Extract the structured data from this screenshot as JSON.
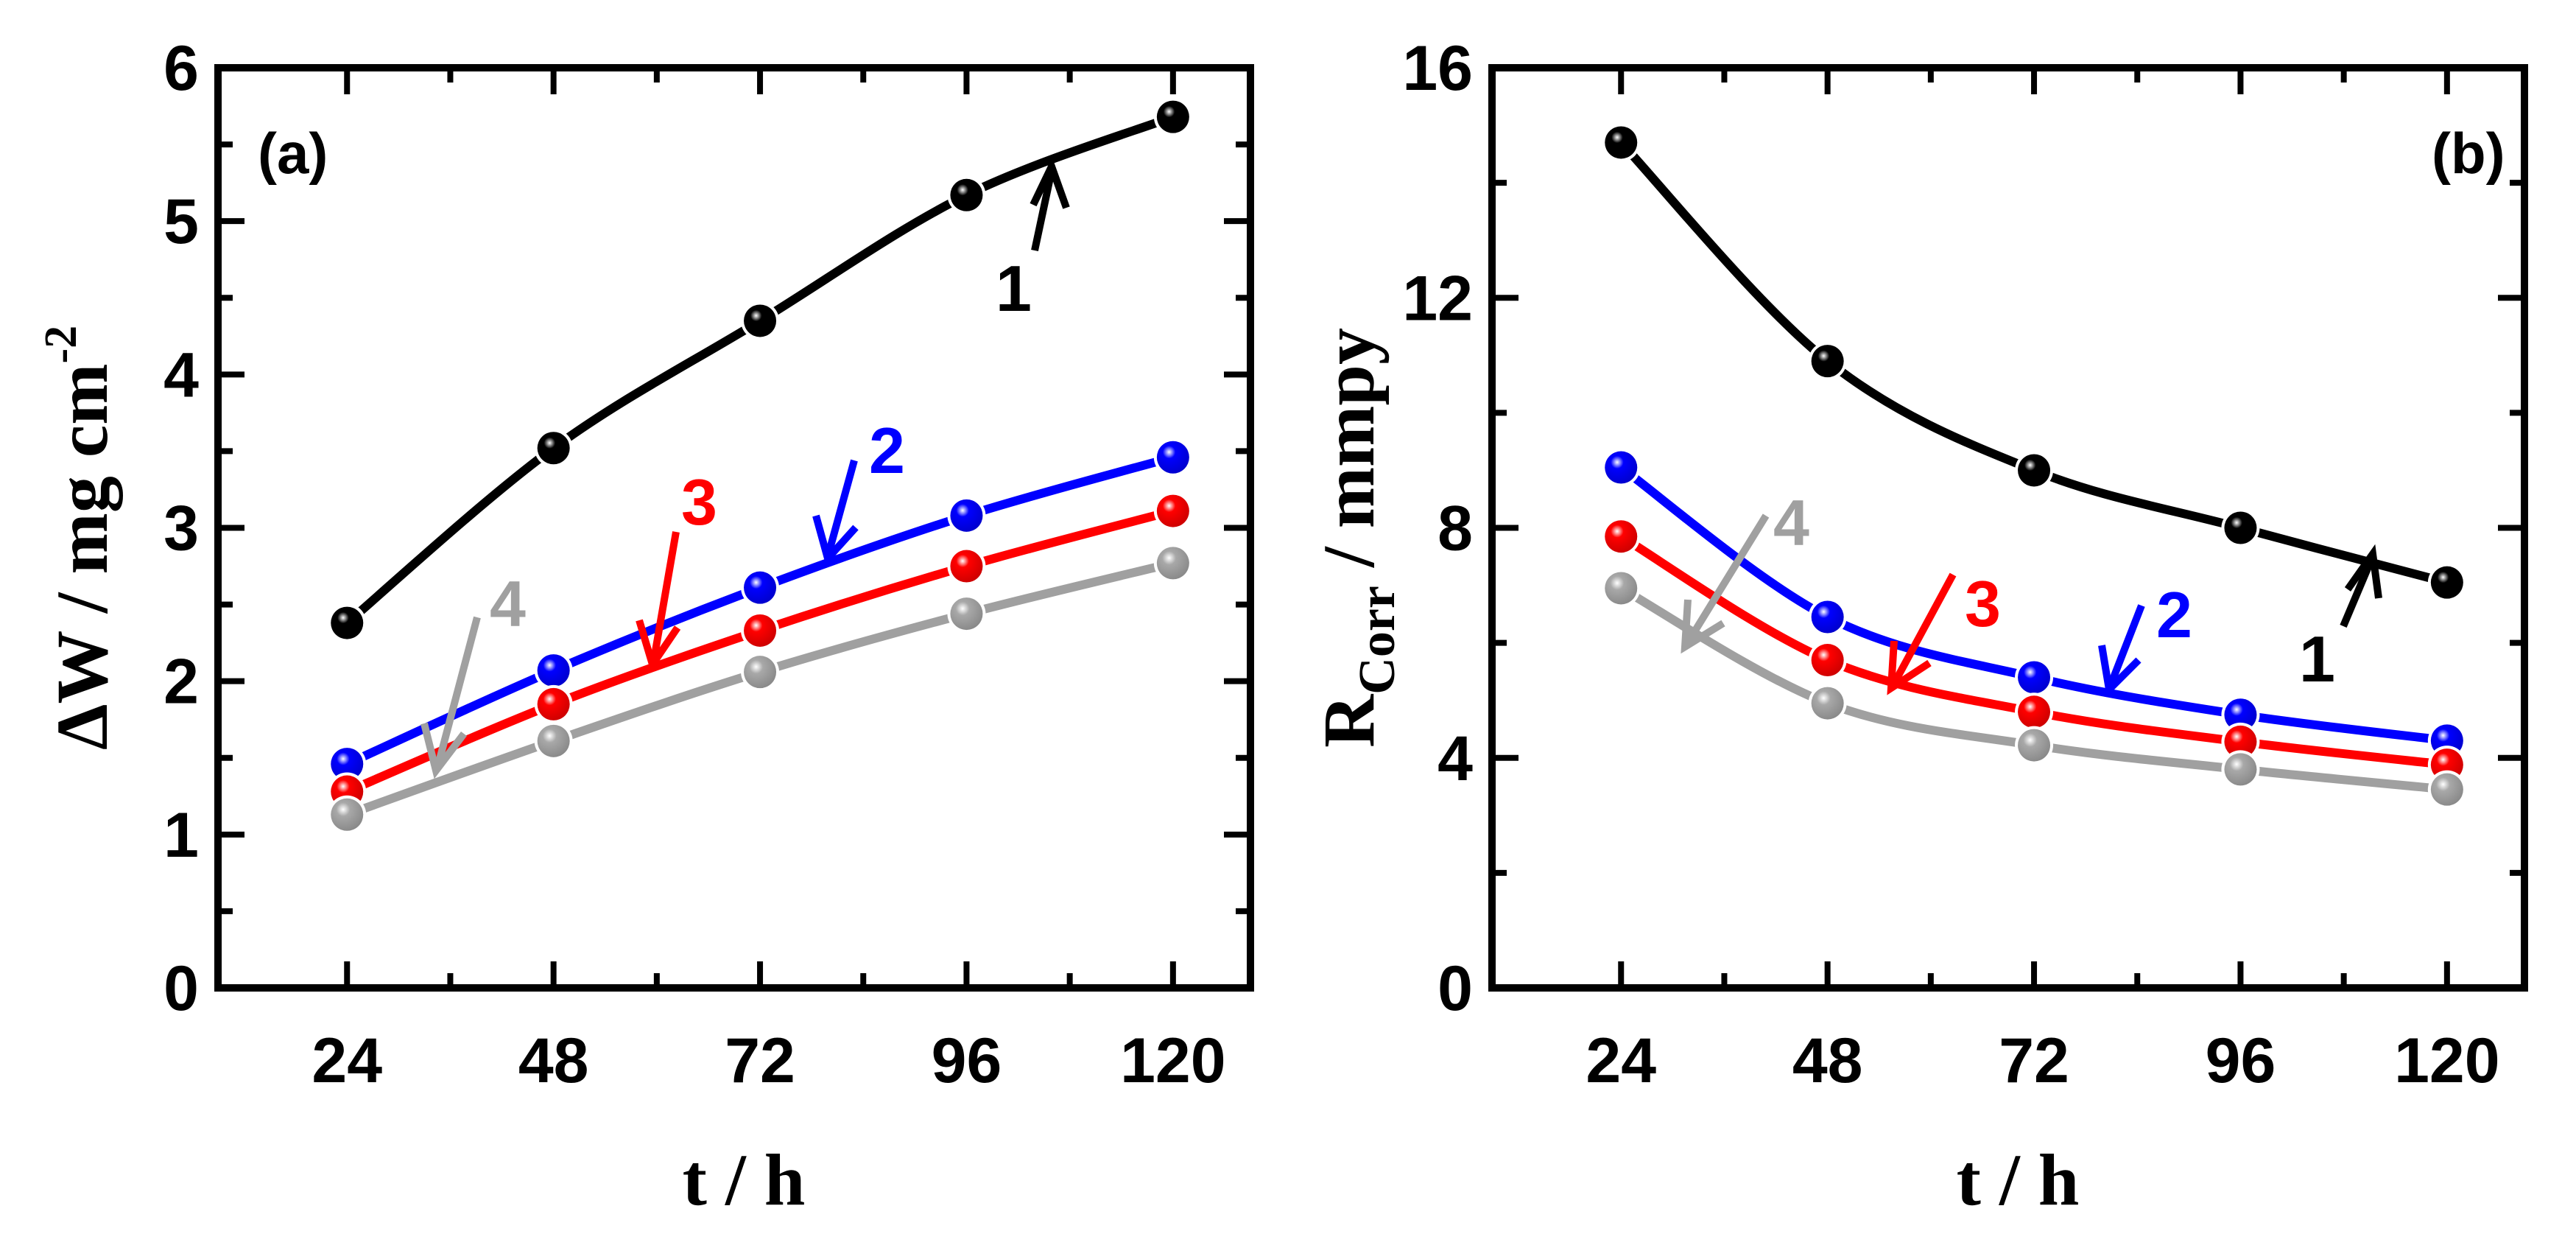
{
  "chart_data": [
    {
      "panel": "(a)",
      "type": "line",
      "xlabel": "t / h",
      "ylabel": "ΔW / mg cm-2",
      "ylabel_main": "ΔW / mg cm",
      "ylabel_sup": "-2",
      "x": [
        24,
        48,
        72,
        96,
        120
      ],
      "xlim": [
        9,
        129
      ],
      "ylim": [
        0,
        6
      ],
      "xticks": [
        24,
        48,
        72,
        96,
        120
      ],
      "yticks": [
        0,
        1,
        2,
        3,
        4,
        5,
        6
      ],
      "series": [
        {
          "name": "1",
          "color": "#000000",
          "values": [
            2.38,
            3.52,
            4.35,
            5.17,
            5.68
          ]
        },
        {
          "name": "2",
          "color": "#0000ff",
          "values": [
            1.46,
            2.07,
            2.61,
            3.08,
            3.46
          ]
        },
        {
          "name": "3",
          "color": "#ff0000",
          "values": [
            1.28,
            1.85,
            2.33,
            2.75,
            3.11
          ]
        },
        {
          "name": "4",
          "color": "#a0a0a0",
          "values": [
            1.13,
            1.61,
            2.06,
            2.44,
            2.77
          ]
        }
      ]
    },
    {
      "panel": "(b)",
      "type": "line",
      "xlabel": "t / h",
      "ylabel": "RCorr / mmpy",
      "ylabel_main": "R",
      "ylabel_sub": "Corr",
      "ylabel_tail": " / mmpy",
      "x": [
        24,
        48,
        72,
        96,
        120
      ],
      "xlim": [
        9,
        129
      ],
      "ylim": [
        0,
        16
      ],
      "xticks": [
        24,
        48,
        72,
        96,
        120
      ],
      "yticks": [
        0,
        4,
        8,
        12,
        16
      ],
      "series": [
        {
          "name": "1",
          "color": "#000000",
          "values": [
            14.7,
            10.9,
            9.0,
            8.0,
            7.05
          ]
        },
        {
          "name": "2",
          "color": "#0000ff",
          "values": [
            9.05,
            6.45,
            5.4,
            4.75,
            4.3
          ]
        },
        {
          "name": "3",
          "color": "#ff0000",
          "values": [
            7.85,
            5.7,
            4.8,
            4.28,
            3.88
          ]
        },
        {
          "name": "4",
          "color": "#a0a0a0",
          "values": [
            6.95,
            4.95,
            4.22,
            3.8,
            3.45
          ]
        }
      ]
    }
  ]
}
